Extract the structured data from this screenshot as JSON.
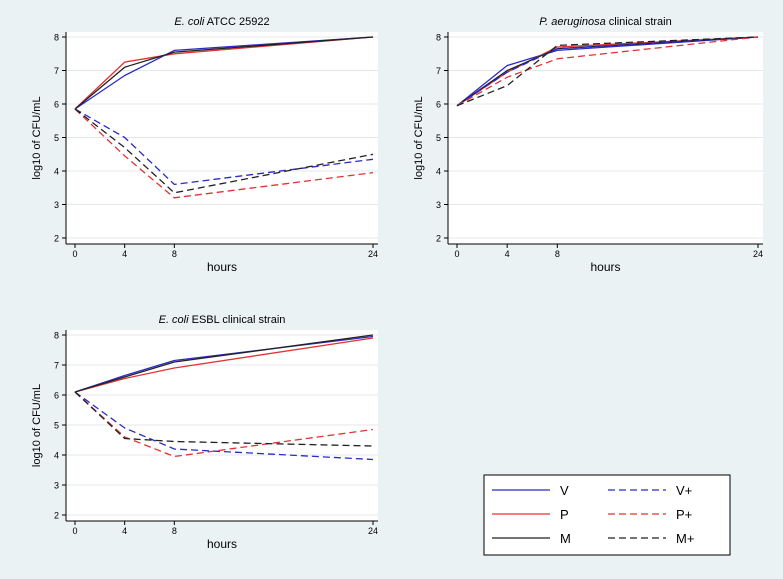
{
  "colors": {
    "background": "#eaf2f3",
    "plot_bg": "#ffffff",
    "grid": "#e3e7ea",
    "axis": "#000000",
    "V": "#2b2bc9",
    "P": "#e23333",
    "M": "#222222"
  },
  "legend": {
    "placement": "bottom-right",
    "items": [
      {
        "label": "V",
        "color_key": "V",
        "dashed": false
      },
      {
        "label": "V+",
        "color_key": "V",
        "dashed": true
      },
      {
        "label": "P",
        "color_key": "P",
        "dashed": false
      },
      {
        "label": "P+",
        "color_key": "P",
        "dashed": true
      },
      {
        "label": "M",
        "color_key": "M",
        "dashed": false
      },
      {
        "label": "M+",
        "color_key": "M",
        "dashed": true
      }
    ]
  },
  "chart_data": [
    {
      "type": "line",
      "title_italic": "E. coli",
      "title_rest": " ATCC 25922",
      "xlabel": "hours",
      "ylabel": "log10 of CFU/mL",
      "xlim": [
        0,
        24
      ],
      "ylim": [
        2,
        8
      ],
      "xticks": [
        0,
        4,
        8,
        24
      ],
      "yticks": [
        2,
        3,
        4,
        5,
        6,
        7,
        8
      ],
      "grid": true,
      "x": [
        0,
        4,
        8,
        24
      ],
      "series": [
        {
          "name": "V",
          "values": [
            5.85,
            6.85,
            7.6,
            8.0
          ]
        },
        {
          "name": "P",
          "values": [
            5.85,
            7.25,
            7.5,
            8.0
          ]
        },
        {
          "name": "M",
          "values": [
            5.85,
            7.1,
            7.55,
            8.0
          ]
        },
        {
          "name": "V+",
          "values": [
            5.85,
            5.0,
            3.6,
            4.35
          ]
        },
        {
          "name": "P+",
          "values": [
            5.85,
            4.45,
            3.2,
            3.95
          ]
        },
        {
          "name": "M+",
          "values": [
            5.85,
            4.7,
            3.35,
            4.5
          ]
        }
      ]
    },
    {
      "type": "line",
      "title_italic": "P. aeruginosa",
      "title_rest": " clinical strain",
      "xlabel": "hours",
      "ylabel": "log10 of CFU/mL",
      "xlim": [
        0,
        24
      ],
      "ylim": [
        2,
        8
      ],
      "xticks": [
        0,
        4,
        8,
        24
      ],
      "yticks": [
        2,
        3,
        4,
        5,
        6,
        7,
        8
      ],
      "grid": true,
      "x": [
        0,
        4,
        8,
        24
      ],
      "series": [
        {
          "name": "V",
          "values": [
            5.95,
            7.15,
            7.6,
            8.0
          ]
        },
        {
          "name": "P",
          "values": [
            5.95,
            6.95,
            7.7,
            8.0
          ]
        },
        {
          "name": "M",
          "values": [
            5.95,
            7.0,
            7.65,
            8.0
          ]
        },
        {
          "name": "V+",
          "values": [
            5.95,
            6.95,
            7.65,
            8.0
          ]
        },
        {
          "name": "P+",
          "values": [
            5.95,
            6.8,
            7.35,
            8.0
          ]
        },
        {
          "name": "M+",
          "values": [
            5.95,
            6.55,
            7.75,
            8.0
          ]
        }
      ]
    },
    {
      "type": "line",
      "title_italic": "E. coli",
      "title_rest": " ESBL clinical strain",
      "xlabel": "hours",
      "ylabel": "log10 of CFU/mL",
      "xlim": [
        0,
        24
      ],
      "ylim": [
        2,
        8
      ],
      "xticks": [
        0,
        4,
        8,
        24
      ],
      "yticks": [
        2,
        3,
        4,
        5,
        6,
        7,
        8
      ],
      "grid": true,
      "x": [
        0,
        4,
        8,
        24
      ],
      "series": [
        {
          "name": "V",
          "values": [
            6.1,
            6.65,
            7.15,
            7.95
          ]
        },
        {
          "name": "P",
          "values": [
            6.1,
            6.55,
            6.9,
            7.9
          ]
        },
        {
          "name": "M",
          "values": [
            6.1,
            6.6,
            7.1,
            8.0
          ]
        },
        {
          "name": "V+",
          "values": [
            6.1,
            4.9,
            4.2,
            3.85
          ]
        },
        {
          "name": "P+",
          "values": [
            6.1,
            4.6,
            3.95,
            4.85
          ]
        },
        {
          "name": "M+",
          "values": [
            6.1,
            4.55,
            4.45,
            4.3
          ]
        }
      ]
    }
  ]
}
